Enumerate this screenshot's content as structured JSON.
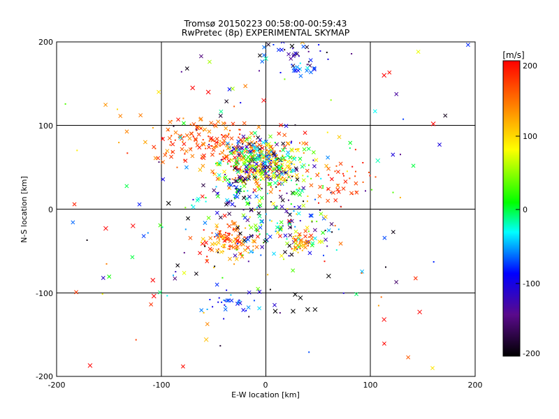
{
  "chart_data": {
    "type": "scatter",
    "title": "Tromsø 20150223 00:58:00-00:59:43",
    "subtitle": "RwPretec (8p) EXPERIMENTAL SKYMAP",
    "xlabel": "E-W location [km]",
    "ylabel": "N-S location [km]",
    "xlim": [
      -200,
      200
    ],
    "ylim": [
      -200,
      200
    ],
    "x_ticks": [
      "-200",
      "-100",
      "0",
      "100",
      "200"
    ],
    "y_ticks": [
      "-200",
      "-100",
      "0",
      "100",
      "200"
    ],
    "grid": true,
    "colorbar": {
      "label": "[m/s]",
      "range": [
        -200,
        200
      ],
      "ticks": [
        "200",
        "100",
        "0",
        "-100",
        "-200"
      ],
      "colormap": [
        "#000000",
        "#5a0a8c",
        "#0000ff",
        "#00ffff",
        "#00ff00",
        "#ffff00",
        "#ff7f00",
        "#ff0000"
      ]
    },
    "clusters": [
      {
        "cx": -55,
        "cy": 80,
        "sx": 30,
        "sy": 14,
        "n": 160,
        "vmin": 120,
        "vmax": 200
      },
      {
        "cx": -10,
        "cy": 55,
        "sx": 20,
        "sy": 15,
        "n": 220,
        "vmin": 60,
        "vmax": 200
      },
      {
        "cx": -5,
        "cy": 60,
        "sx": 16,
        "sy": 12,
        "n": 140,
        "vmin": -200,
        "vmax": 40
      },
      {
        "cx": 10,
        "cy": 50,
        "sx": 20,
        "sy": 16,
        "n": 100,
        "vmin": -40,
        "vmax": 120
      },
      {
        "cx": -15,
        "cy": 25,
        "sx": 25,
        "sy": 15,
        "n": 110,
        "vmin": -200,
        "vmax": 40
      },
      {
        "cx": -35,
        "cy": -40,
        "sx": 15,
        "sy": 12,
        "n": 110,
        "vmin": 100,
        "vmax": 200
      },
      {
        "cx": 15,
        "cy": -25,
        "sx": 25,
        "sy": 18,
        "n": 120,
        "vmin": -200,
        "vmax": 100
      },
      {
        "cx": 35,
        "cy": -40,
        "sx": 8,
        "sy": 8,
        "n": 35,
        "vmin": 100,
        "vmax": 180
      },
      {
        "cx": 75,
        "cy": 35,
        "sx": 15,
        "sy": 15,
        "n": 40,
        "vmin": 150,
        "vmax": 200
      },
      {
        "cx": -35,
        "cy": -110,
        "sx": 12,
        "sy": 8,
        "n": 30,
        "vmin": -120,
        "vmax": -40
      },
      {
        "cx": 30,
        "cy": 185,
        "sx": 20,
        "sy": 10,
        "n": 35,
        "vmin": -200,
        "vmax": -60
      },
      {
        "cx": 30,
        "cy": 168,
        "sx": 12,
        "sy": 6,
        "n": 15,
        "vmin": -100,
        "vmax": -20
      },
      {
        "cx": 0,
        "cy": 0,
        "sx": 95,
        "sy": 90,
        "n": 180,
        "vmin": -200,
        "vmax": 200
      }
    ],
    "cross_points": [
      {
        "x": -168,
        "y": -187,
        "v": 200
      },
      {
        "x": -153,
        "y": -23,
        "v": 200
      },
      {
        "x": -127,
        "y": -20,
        "v": 200
      },
      {
        "x": -108,
        "y": -85,
        "v": 200
      },
      {
        "x": -107,
        "y": -104,
        "v": 200
      },
      {
        "x": -93,
        "y": 7,
        "v": -200
      },
      {
        "x": 113,
        "y": -132,
        "v": 200
      },
      {
        "x": 147,
        "y": -123,
        "v": 200
      },
      {
        "x": 160,
        "y": 102,
        "v": 200
      },
      {
        "x": 113,
        "y": 160,
        "v": 200
      },
      {
        "x": 107,
        "y": 58,
        "v": -20
      },
      {
        "x": 60,
        "y": -80,
        "v": -200
      },
      {
        "x": 9,
        "y": -122,
        "v": -200
      },
      {
        "x": 26,
        "y": -122,
        "v": -200
      },
      {
        "x": 40,
        "y": -120,
        "v": -200
      },
      {
        "x": 47,
        "y": -120,
        "v": -200
      },
      {
        "x": 28,
        "y": -102,
        "v": -200
      },
      {
        "x": 33,
        "y": -106,
        "v": -200
      },
      {
        "x": -57,
        "y": -156,
        "v": 110
      },
      {
        "x": -55,
        "y": 140,
        "v": 200
      },
      {
        "x": -70,
        "y": 145,
        "v": 200
      },
      {
        "x": -2,
        "y": 130,
        "v": 200
      },
      {
        "x": 0,
        "y": 180,
        "v": -20
      },
      {
        "x": 25,
        "y": 195,
        "v": -200
      },
      {
        "x": 35,
        "y": 200,
        "v": 120
      }
    ]
  }
}
